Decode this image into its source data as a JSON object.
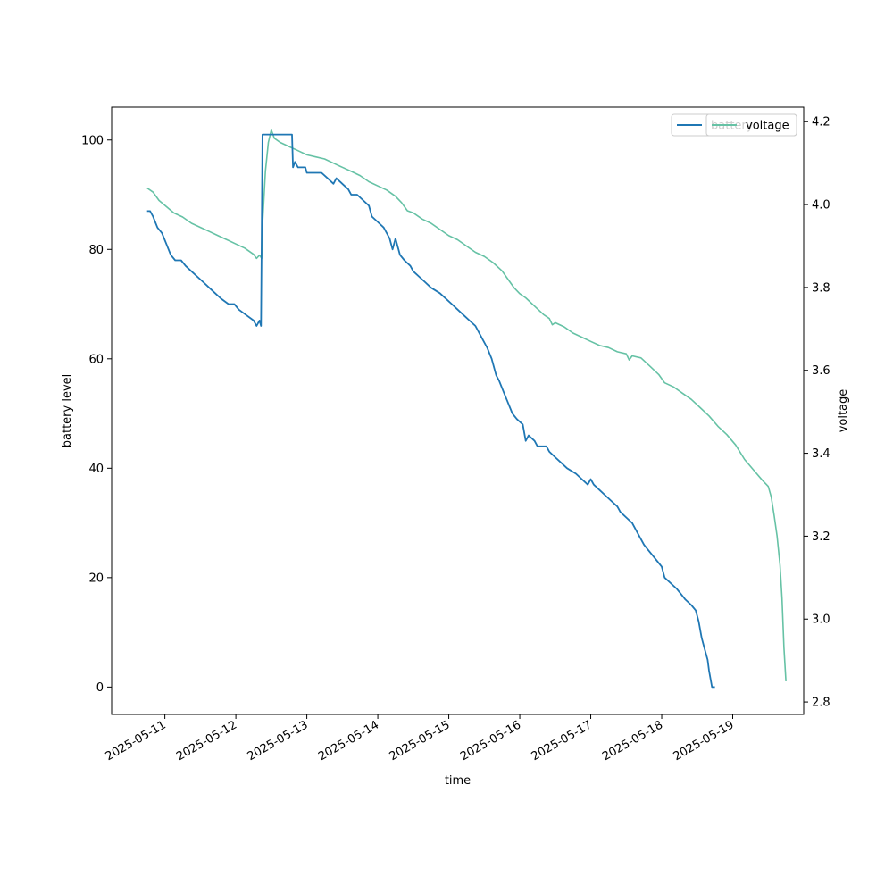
{
  "chart_data": {
    "type": "line",
    "title": "",
    "xlabel": "time",
    "ylabel": "battery level",
    "y2label": "voltage",
    "x_ticks": [
      "2025-05-11",
      "2025-05-12",
      "2025-05-13",
      "2025-05-14",
      "2025-05-15",
      "2025-05-16",
      "2025-05-17",
      "2025-05-18",
      "2025-05-19"
    ],
    "y_ticks": [
      0,
      20,
      40,
      60,
      80,
      100
    ],
    "y2_ticks": [
      2.8,
      3.0,
      3.2,
      3.4,
      3.6,
      3.8,
      4.0,
      4.2
    ],
    "xlim": [
      "2025-05-10 06:00",
      "2025-05-20 00:00"
    ],
    "ylim": [
      -5,
      106
    ],
    "y2lim": [
      2.77,
      4.235
    ],
    "legends": [
      {
        "position": "top-right",
        "entries": [
          "battery"
        ]
      },
      {
        "position": "top-right",
        "entries": [
          "voltage"
        ]
      }
    ],
    "grid": false,
    "series": [
      {
        "name": "battery",
        "axis": "left",
        "color": "#1f77b4",
        "points": [
          [
            "2025-05-10 18:00",
            87
          ],
          [
            "2025-05-10 19:00",
            87
          ],
          [
            "2025-05-10 20:00",
            86
          ],
          [
            "2025-05-10 21:30",
            84
          ],
          [
            "2025-05-10 23:00",
            83
          ],
          [
            "2025-05-11 00:30",
            81
          ],
          [
            "2025-05-11 02:00",
            79
          ],
          [
            "2025-05-11 03:30",
            78
          ],
          [
            "2025-05-11 05:30",
            78
          ],
          [
            "2025-05-11 07:00",
            77
          ],
          [
            "2025-05-11 09:00",
            76
          ],
          [
            "2025-05-11 11:00",
            75
          ],
          [
            "2025-05-11 13:00",
            74
          ],
          [
            "2025-05-11 15:00",
            73
          ],
          [
            "2025-05-11 17:00",
            72
          ],
          [
            "2025-05-11 19:00",
            71
          ],
          [
            "2025-05-11 21:30",
            70
          ],
          [
            "2025-05-11 23:30",
            70
          ],
          [
            "2025-05-12 01:00",
            69
          ],
          [
            "2025-05-12 03:30",
            68
          ],
          [
            "2025-05-12 06:00",
            67
          ],
          [
            "2025-05-12 07:00",
            66
          ],
          [
            "2025-05-12 08:00",
            67
          ],
          [
            "2025-05-12 08:30",
            66
          ],
          [
            "2025-05-12 09:00",
            101
          ],
          [
            "2025-05-12 11:00",
            101
          ],
          [
            "2025-05-12 14:00",
            101
          ],
          [
            "2025-05-12 17:00",
            101
          ],
          [
            "2025-05-12 19:00",
            101
          ],
          [
            "2025-05-12 19:20",
            95
          ],
          [
            "2025-05-12 20:00",
            96
          ],
          [
            "2025-05-12 21:00",
            95
          ],
          [
            "2025-05-12 23:30",
            95
          ],
          [
            "2025-05-13 00:00",
            94
          ],
          [
            "2025-05-13 03:00",
            94
          ],
          [
            "2025-05-13 05:00",
            94
          ],
          [
            "2025-05-13 07:00",
            93
          ],
          [
            "2025-05-13 09:00",
            92
          ],
          [
            "2025-05-13 10:00",
            93
          ],
          [
            "2025-05-13 12:00",
            92
          ],
          [
            "2025-05-13 14:00",
            91
          ],
          [
            "2025-05-13 15:00",
            90
          ],
          [
            "2025-05-13 17:00",
            90
          ],
          [
            "2025-05-13 19:00",
            89
          ],
          [
            "2025-05-13 21:00",
            88
          ],
          [
            "2025-05-13 22:00",
            86
          ],
          [
            "2025-05-14 00:00",
            85
          ],
          [
            "2025-05-14 02:00",
            84
          ],
          [
            "2025-05-14 04:00",
            82
          ],
          [
            "2025-05-14 05:00",
            80
          ],
          [
            "2025-05-14 06:00",
            82
          ],
          [
            "2025-05-14 07:30",
            79
          ],
          [
            "2025-05-14 09:00",
            78
          ],
          [
            "2025-05-14 11:00",
            77
          ],
          [
            "2025-05-14 12:00",
            76
          ],
          [
            "2025-05-14 14:00",
            75
          ],
          [
            "2025-05-14 16:00",
            74
          ],
          [
            "2025-05-14 18:00",
            73
          ],
          [
            "2025-05-14 21:00",
            72
          ],
          [
            "2025-05-14 23:00",
            71
          ],
          [
            "2025-05-15 01:00",
            70
          ],
          [
            "2025-05-15 03:00",
            69
          ],
          [
            "2025-05-15 05:00",
            68
          ],
          [
            "2025-05-15 07:00",
            67
          ],
          [
            "2025-05-15 09:00",
            66
          ],
          [
            "2025-05-15 11:00",
            64
          ],
          [
            "2025-05-15 13:00",
            62
          ],
          [
            "2025-05-15 14:30",
            60
          ],
          [
            "2025-05-15 16:00",
            57
          ],
          [
            "2025-05-15 17:00",
            56
          ],
          [
            "2025-05-15 18:30",
            54
          ],
          [
            "2025-05-15 20:00",
            52
          ],
          [
            "2025-05-15 21:30",
            50
          ],
          [
            "2025-05-15 23:00",
            49
          ],
          [
            "2025-05-16 01:00",
            48
          ],
          [
            "2025-05-16 02:00",
            45
          ],
          [
            "2025-05-16 03:00",
            46
          ],
          [
            "2025-05-16 05:00",
            45
          ],
          [
            "2025-05-16 06:00",
            44
          ],
          [
            "2025-05-16 09:00",
            44
          ],
          [
            "2025-05-16 10:00",
            43
          ],
          [
            "2025-05-16 12:00",
            42
          ],
          [
            "2025-05-16 14:00",
            41
          ],
          [
            "2025-05-16 16:00",
            40
          ],
          [
            "2025-05-16 19:00",
            39
          ],
          [
            "2025-05-16 21:00",
            38
          ],
          [
            "2025-05-16 23:00",
            37
          ],
          [
            "2025-05-17 00:00",
            38
          ],
          [
            "2025-05-17 01:00",
            37
          ],
          [
            "2025-05-17 03:00",
            36
          ],
          [
            "2025-05-17 05:00",
            35
          ],
          [
            "2025-05-17 07:00",
            34
          ],
          [
            "2025-05-17 09:00",
            33
          ],
          [
            "2025-05-17 10:00",
            32
          ],
          [
            "2025-05-17 12:00",
            31
          ],
          [
            "2025-05-17 14:00",
            30
          ],
          [
            "2025-05-17 16:00",
            28
          ],
          [
            "2025-05-17 18:00",
            26
          ],
          [
            "2025-05-17 19:30",
            25
          ],
          [
            "2025-05-17 21:00",
            24
          ],
          [
            "2025-05-17 22:30",
            23
          ],
          [
            "2025-05-18 00:00",
            22
          ],
          [
            "2025-05-18 01:00",
            20
          ],
          [
            "2025-05-18 03:00",
            19
          ],
          [
            "2025-05-18 05:00",
            18
          ],
          [
            "2025-05-18 06:30",
            17
          ],
          [
            "2025-05-18 08:00",
            16
          ],
          [
            "2025-05-18 10:00",
            15
          ],
          [
            "2025-05-18 11:30",
            14
          ],
          [
            "2025-05-18 12:30",
            12
          ],
          [
            "2025-05-18 13:30",
            9
          ],
          [
            "2025-05-18 14:30",
            7
          ],
          [
            "2025-05-18 15:30",
            5
          ],
          [
            "2025-05-18 16:00",
            3
          ],
          [
            "2025-05-18 17:00",
            0
          ],
          [
            "2025-05-18 18:00",
            0
          ]
        ]
      },
      {
        "name": "voltage",
        "axis": "right",
        "color": "#66c2a5",
        "points": [
          [
            "2025-05-10 18:00",
            4.04
          ],
          [
            "2025-05-10 20:00",
            4.03
          ],
          [
            "2025-05-10 22:00",
            4.01
          ],
          [
            "2025-05-11 00:30",
            3.995
          ],
          [
            "2025-05-11 03:00",
            3.98
          ],
          [
            "2025-05-11 06:00",
            3.97
          ],
          [
            "2025-05-11 09:00",
            3.955
          ],
          [
            "2025-05-11 12:00",
            3.945
          ],
          [
            "2025-05-11 15:00",
            3.935
          ],
          [
            "2025-05-11 18:00",
            3.925
          ],
          [
            "2025-05-11 21:00",
            3.915
          ],
          [
            "2025-05-12 00:00",
            3.905
          ],
          [
            "2025-05-12 03:00",
            3.895
          ],
          [
            "2025-05-12 06:00",
            3.88
          ],
          [
            "2025-05-12 07:00",
            3.87
          ],
          [
            "2025-05-12 08:00",
            3.878
          ],
          [
            "2025-05-12 08:45",
            3.87
          ],
          [
            "2025-05-12 09:00",
            3.95
          ],
          [
            "2025-05-12 10:00",
            4.08
          ],
          [
            "2025-05-12 11:00",
            4.15
          ],
          [
            "2025-05-12 12:00",
            4.18
          ],
          [
            "2025-05-12 13:00",
            4.16
          ],
          [
            "2025-05-12 15:00",
            4.15
          ],
          [
            "2025-05-12 18:00",
            4.14
          ],
          [
            "2025-05-12 21:00",
            4.13
          ],
          [
            "2025-05-13 00:00",
            4.12
          ],
          [
            "2025-05-13 03:00",
            4.115
          ],
          [
            "2025-05-13 06:00",
            4.11
          ],
          [
            "2025-05-13 09:00",
            4.1
          ],
          [
            "2025-05-13 12:00",
            4.09
          ],
          [
            "2025-05-13 15:00",
            4.08
          ],
          [
            "2025-05-13 18:00",
            4.07
          ],
          [
            "2025-05-13 21:00",
            4.055
          ],
          [
            "2025-05-14 00:00",
            4.045
          ],
          [
            "2025-05-14 03:00",
            4.035
          ],
          [
            "2025-05-14 06:00",
            4.02
          ],
          [
            "2025-05-14 08:00",
            4.005
          ],
          [
            "2025-05-14 09:00",
            3.995
          ],
          [
            "2025-05-14 10:00",
            3.985
          ],
          [
            "2025-05-14 12:00",
            3.98
          ],
          [
            "2025-05-14 15:00",
            3.965
          ],
          [
            "2025-05-14 18:00",
            3.955
          ],
          [
            "2025-05-14 21:00",
            3.94
          ],
          [
            "2025-05-15 00:00",
            3.925
          ],
          [
            "2025-05-15 03:00",
            3.915
          ],
          [
            "2025-05-15 06:00",
            3.9
          ],
          [
            "2025-05-15 09:00",
            3.885
          ],
          [
            "2025-05-15 12:00",
            3.875
          ],
          [
            "2025-05-15 15:00",
            3.86
          ],
          [
            "2025-05-15 18:00",
            3.84
          ],
          [
            "2025-05-15 20:00",
            3.82
          ],
          [
            "2025-05-15 22:00",
            3.8
          ],
          [
            "2025-05-16 00:00",
            3.785
          ],
          [
            "2025-05-16 02:00",
            3.775
          ],
          [
            "2025-05-16 05:00",
            3.755
          ],
          [
            "2025-05-16 08:00",
            3.735
          ],
          [
            "2025-05-16 10:00",
            3.725
          ],
          [
            "2025-05-16 11:00",
            3.71
          ],
          [
            "2025-05-16 12:00",
            3.715
          ],
          [
            "2025-05-16 15:00",
            3.705
          ],
          [
            "2025-05-16 18:00",
            3.69
          ],
          [
            "2025-05-16 21:00",
            3.68
          ],
          [
            "2025-05-17 00:00",
            3.67
          ],
          [
            "2025-05-17 03:00",
            3.66
          ],
          [
            "2025-05-17 06:00",
            3.655
          ],
          [
            "2025-05-17 09:00",
            3.645
          ],
          [
            "2025-05-17 12:00",
            3.64
          ],
          [
            "2025-05-17 13:00",
            3.625
          ],
          [
            "2025-05-17 14:00",
            3.635
          ],
          [
            "2025-05-17 17:00",
            3.63
          ],
          [
            "2025-05-17 20:00",
            3.61
          ],
          [
            "2025-05-17 23:00",
            3.59
          ],
          [
            "2025-05-18 01:00",
            3.57
          ],
          [
            "2025-05-18 04:00",
            3.56
          ],
          [
            "2025-05-18 07:00",
            3.545
          ],
          [
            "2025-05-18 10:00",
            3.53
          ],
          [
            "2025-05-18 13:00",
            3.51
          ],
          [
            "2025-05-18 16:00",
            3.49
          ],
          [
            "2025-05-18 19:00",
            3.465
          ],
          [
            "2025-05-18 22:00",
            3.445
          ],
          [
            "2025-05-19 01:00",
            3.42
          ],
          [
            "2025-05-19 04:00",
            3.385
          ],
          [
            "2025-05-19 07:00",
            3.36
          ],
          [
            "2025-05-19 10:00",
            3.335
          ],
          [
            "2025-05-19 12:00",
            3.32
          ],
          [
            "2025-05-19 13:00",
            3.295
          ],
          [
            "2025-05-19 14:00",
            3.25
          ],
          [
            "2025-05-19 15:00",
            3.2
          ],
          [
            "2025-05-19 16:00",
            3.13
          ],
          [
            "2025-05-19 16:40",
            3.05
          ],
          [
            "2025-05-19 17:20",
            2.93
          ],
          [
            "2025-05-19 18:00",
            2.85
          ]
        ]
      }
    ]
  }
}
